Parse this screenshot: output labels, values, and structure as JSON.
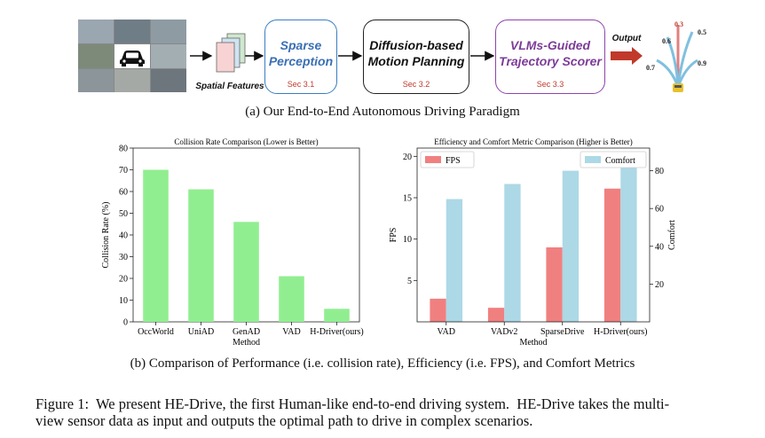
{
  "pipeline": {
    "input_label": "Spatial Features",
    "boxes": [
      {
        "title_lines": [
          "Sparse",
          "Perception"
        ],
        "section": "Sec 3.1",
        "border_color": "#3a7fc1",
        "text_color": "#3a6fb5"
      },
      {
        "title_lines": [
          "Diffusion-based",
          "Motion Planning"
        ],
        "section": "Sec 3.2",
        "border_color": "#222222",
        "text_color": "#111111"
      },
      {
        "title_lines": [
          "VLMs-Guided",
          "Trajectory Scorer"
        ],
        "section": "Sec 3.3",
        "border_color": "#8e44ad",
        "text_color": "#7d3c98"
      }
    ],
    "output_label": "Output",
    "scores": [
      "0.3",
      "0.6",
      "0.5",
      "0.7",
      "0.9"
    ]
  },
  "caption_a": "(a) Our End-to-End Autonomous Driving Paradigm",
  "caption_b": "(b) Comparison of Performance (i.e. collision rate), Efficiency (i.e. FPS), and Comfort Metrics",
  "figure_caption_line1": "Figure 1:  We present HE-Drive, the first Human-like end-to-end driving system.  HE-Drive takes the multi-",
  "figure_caption_line2": "view sensor data as input and outputs the optimal path to drive in complex scenarios.",
  "chart_data": [
    {
      "type": "bar",
      "title": "Collision Rate Comparison (Lower is Better)",
      "xlabel": "Method",
      "ylabel": "Collision Rate (%)",
      "categories": [
        "OccWorld",
        "UniAD",
        "GenAD",
        "VAD",
        "H-Driver(ours)"
      ],
      "values": [
        70,
        61,
        46,
        21,
        6
      ],
      "ylim": [
        0,
        80
      ],
      "yticks": [
        0,
        10,
        20,
        30,
        40,
        50,
        60,
        70,
        80
      ],
      "color": "#90ee90"
    },
    {
      "type": "bar",
      "title": "Efficiency and Comfort Metric Comparison (Higher is Better)",
      "xlabel": "Method",
      "categories": [
        "VAD",
        "VADv2",
        "SparseDrive",
        "H-Driver(ours)"
      ],
      "series": [
        {
          "name": "FPS",
          "axis": "left",
          "values": [
            2.8,
            1.7,
            9.0,
            16.1
          ],
          "color": "#f08080"
        },
        {
          "name": "Comfort",
          "axis": "right",
          "values": [
            65,
            73,
            80,
            85
          ],
          "color": "#add8e6"
        }
      ],
      "ylabel_left": "FPS",
      "ylabel_right": "Comfort",
      "ylim_left": [
        0,
        21
      ],
      "ylim_right": [
        0,
        92
      ],
      "yticks_left": [
        5,
        10,
        15,
        20
      ],
      "yticks_right": [
        20,
        40,
        60,
        80
      ],
      "legend": [
        "top-left",
        "top-right"
      ]
    }
  ]
}
